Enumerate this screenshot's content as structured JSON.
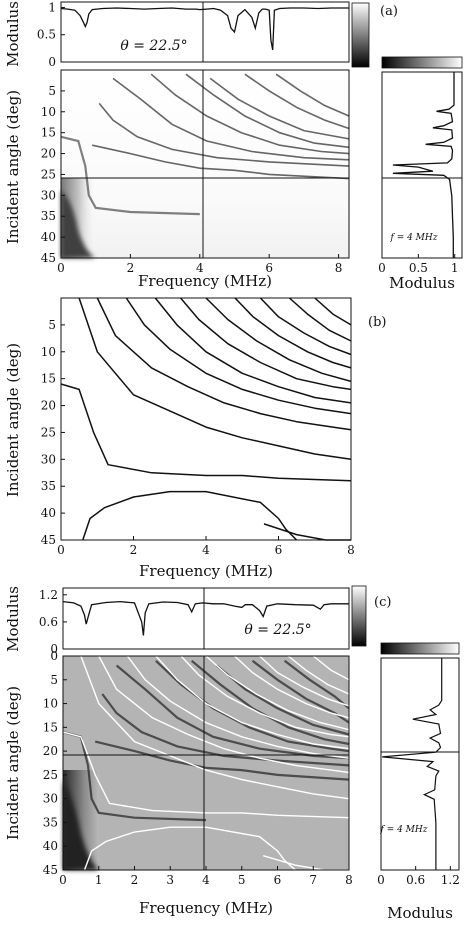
{
  "chart_data": [
    {
      "panel": "(a)",
      "type": "line",
      "subplot": "modulus-vs-frequency",
      "ylabel": "Modulus",
      "xlim": [
        0,
        8.3
      ],
      "ylim": [
        0,
        1.1
      ],
      "yticks": [
        "0",
        "0.5",
        "1"
      ],
      "annotation": "θ = 22.5°",
      "series": [
        {
          "x": [
            0,
            0.2,
            0.4,
            0.55,
            0.65,
            0.7,
            0.75,
            0.8,
            0.9,
            1.2,
            1.6,
            2.0,
            2.4,
            2.8,
            3.2,
            3.6,
            3.9,
            4.0,
            4.2,
            4.4,
            4.6,
            4.8,
            4.9,
            5.0,
            5.1,
            5.3,
            5.5,
            5.6,
            5.7,
            5.8,
            5.9,
            6.0,
            6.05,
            6.1,
            6.15,
            6.3,
            6.6,
            7.0,
            7.4,
            7.8,
            8.3
          ],
          "y": [
            0.98,
            0.97,
            0.95,
            0.85,
            0.72,
            0.65,
            0.72,
            0.88,
            0.96,
            0.98,
            0.99,
            0.98,
            0.97,
            0.98,
            0.99,
            0.97,
            0.97,
            0.96,
            0.97,
            0.98,
            0.95,
            0.85,
            0.62,
            0.55,
            0.85,
            0.96,
            0.82,
            0.62,
            0.9,
            0.97,
            0.97,
            0.95,
            0.4,
            0.22,
            0.95,
            0.98,
            0.99,
            0.99,
            0.98,
            0.99,
            0.99
          ]
        }
      ],
      "colorbar": "grayscale"
    },
    {
      "panel": "(a)",
      "type": "heatmap",
      "subplot": "angle-frequency-map",
      "xlabel": "Frequency (MHz)",
      "ylabel": "Incident angle (deg)",
      "xlim": [
        0,
        8.3
      ],
      "ylim": [
        0,
        45
      ],
      "xticks": [
        "0",
        "2",
        "4",
        "6",
        "8"
      ],
      "yticks": [
        "5",
        "10",
        "15",
        "20",
        "25",
        "30",
        "35",
        "40",
        "45"
      ],
      "crosshair": {
        "frequency": 4,
        "angle": 22.5
      },
      "dark_curves": [
        [
          [
            0,
            16
          ],
          [
            0.5,
            17
          ],
          [
            0.7,
            23
          ],
          [
            0.8,
            30
          ],
          [
            1.0,
            33
          ],
          [
            2.0,
            34
          ],
          [
            4.0,
            34.5
          ]
        ],
        [
          [
            0.9,
            18
          ],
          [
            2,
            20
          ],
          [
            3,
            22
          ],
          [
            4,
            23.5
          ],
          [
            5,
            24
          ],
          [
            6,
            25
          ],
          [
            8.3,
            26
          ]
        ],
        [
          [
            1.1,
            8
          ],
          [
            1.5,
            12
          ],
          [
            2.2,
            16
          ],
          [
            3.2,
            19
          ],
          [
            4.5,
            21
          ],
          [
            6,
            22
          ],
          [
            8.3,
            23
          ]
        ],
        [
          [
            1.5,
            2
          ],
          [
            2.3,
            7
          ],
          [
            3.2,
            13
          ],
          [
            4.2,
            17
          ],
          [
            5.5,
            19.5
          ],
          [
            7,
            21
          ],
          [
            8.3,
            21.5
          ]
        ],
        [
          [
            2.6,
            1
          ],
          [
            3.3,
            6
          ],
          [
            4.2,
            11
          ],
          [
            5.2,
            15
          ],
          [
            6.3,
            18
          ],
          [
            7.5,
            19.5
          ],
          [
            8.3,
            20
          ]
        ],
        [
          [
            3.6,
            1
          ],
          [
            4.4,
            6
          ],
          [
            5.3,
            11
          ],
          [
            6.3,
            15
          ],
          [
            7.3,
            17.5
          ],
          [
            8.3,
            18.5
          ]
        ],
        [
          [
            4.3,
            2
          ],
          [
            5.1,
            7
          ],
          [
            6.0,
            11
          ],
          [
            7.0,
            14.5
          ],
          [
            8.3,
            16.5
          ]
        ],
        [
          [
            5.3,
            1
          ],
          [
            6.0,
            5
          ],
          [
            6.8,
            9
          ],
          [
            7.6,
            12
          ],
          [
            8.3,
            14
          ]
        ],
        [
          [
            6.2,
            1
          ],
          [
            6.9,
            5
          ],
          [
            7.6,
            8.5
          ],
          [
            8.3,
            11
          ]
        ]
      ]
    },
    {
      "panel": "(a)",
      "type": "line",
      "subplot": "modulus-vs-angle",
      "xlabel": "Modulus",
      "xlim": [
        0,
        1.1
      ],
      "ylim": [
        0,
        45
      ],
      "xticks": [
        "0",
        "0.5",
        "1"
      ],
      "annotation": "f = 4 MHz",
      "series": [
        {
          "angle": [
            0,
            8,
            9,
            9.5,
            10,
            12,
            13,
            13.5,
            14,
            16,
            17,
            17.5,
            18,
            19,
            21,
            22,
            22.5,
            23,
            24,
            24.5,
            25,
            26,
            30,
            35,
            40,
            45
          ],
          "modulus": [
            0.99,
            0.99,
            0.92,
            0.75,
            0.95,
            0.97,
            0.85,
            0.7,
            0.96,
            0.97,
            0.85,
            0.6,
            0.95,
            0.97,
            0.96,
            0.9,
            0.15,
            0.5,
            0.7,
            0.15,
            0.85,
            0.93,
            0.96,
            0.97,
            0.98,
            0.98
          ]
        }
      ],
      "colorbar": "grayscale"
    },
    {
      "panel": "(b)",
      "type": "line",
      "subplot": "dispersion-curves",
      "xlabel": "Frequency (MHz)",
      "ylabel": "Incident angle (deg)",
      "xlim": [
        0,
        8
      ],
      "ylim": [
        0,
        45
      ],
      "xticks": [
        "0",
        "2",
        "4",
        "6",
        "8"
      ],
      "yticks": [
        "5",
        "10",
        "15",
        "20",
        "25",
        "30",
        "35",
        "40",
        "45"
      ],
      "series": [
        {
          "x": [
            0,
            0.5,
            0.9,
            1.3,
            2.5,
            4,
            5,
            6,
            8
          ],
          "y": [
            16,
            17,
            25,
            31,
            32.5,
            33,
            33,
            33.5,
            34
          ]
        },
        {
          "x": [
            0.6,
            0.8,
            1.2,
            2,
            3,
            4,
            5.5,
            6,
            6.2,
            6.5
          ],
          "y": [
            45,
            41,
            39,
            37,
            36,
            36,
            38,
            41,
            43,
            45
          ]
        },
        {
          "x": [
            5.6,
            6.5,
            7.3,
            8
          ],
          "y": [
            42,
            44,
            45,
            45
          ]
        },
        {
          "x": [
            0.5,
            1.0,
            2,
            3,
            4,
            5,
            6,
            7,
            8
          ],
          "y": [
            0,
            10,
            18,
            21,
            24,
            26,
            27.5,
            29,
            30
          ]
        },
        {
          "x": [
            1.0,
            1.5,
            2.5,
            3.5,
            4.5,
            5.5,
            6.5,
            7.5,
            8
          ],
          "y": [
            0,
            7,
            13,
            16.5,
            19.5,
            21.5,
            23,
            24,
            24.5
          ]
        },
        {
          "x": [
            1.8,
            2.3,
            3,
            4,
            5,
            6,
            7,
            8
          ],
          "y": [
            0,
            5,
            9.5,
            14,
            17,
            19,
            20.5,
            21.5
          ]
        },
        {
          "x": [
            2.6,
            3.2,
            4,
            5,
            6,
            7,
            8
          ],
          "y": [
            0,
            5,
            10,
            14,
            16.5,
            18.5,
            19.5
          ]
        },
        {
          "x": [
            3.3,
            3.8,
            4.6,
            5.5,
            6.5,
            7.5,
            8
          ],
          "y": [
            0,
            4,
            8.5,
            12,
            15,
            16.5,
            17
          ]
        },
        {
          "x": [
            4.0,
            4.6,
            5.4,
            6.3,
            7.2,
            8
          ],
          "y": [
            0,
            4,
            8,
            11.5,
            14,
            15.5
          ]
        },
        {
          "x": [
            4.8,
            5.3,
            6.0,
            6.8,
            7.5,
            8
          ],
          "y": [
            0,
            3.5,
            7,
            10,
            12,
            13
          ]
        },
        {
          "x": [
            5.5,
            6.0,
            6.7,
            7.4,
            8
          ],
          "y": [
            0,
            3.5,
            6.5,
            9,
            10.5
          ]
        },
        {
          "x": [
            6.3,
            6.8,
            7.4,
            8
          ],
          "y": [
            0,
            3,
            6,
            8
          ]
        },
        {
          "x": [
            7.0,
            7.5,
            8
          ],
          "y": [
            0,
            3,
            5
          ]
        }
      ]
    },
    {
      "panel": "(c)",
      "type": "line",
      "subplot": "modulus-vs-frequency",
      "ylabel": "Modulus",
      "xlim": [
        0,
        8
      ],
      "ylim": [
        0,
        1.35
      ],
      "yticks": [
        "0",
        "0.6",
        "1.2"
      ],
      "annotation": "θ = 22.5°",
      "series": [
        {
          "x": [
            0,
            0.3,
            0.5,
            0.6,
            0.65,
            0.7,
            0.8,
            1.2,
            1.6,
            2.0,
            2.2,
            2.25,
            2.3,
            2.4,
            2.8,
            3.2,
            3.5,
            3.6,
            3.7,
            3.9,
            4.2,
            4.5,
            4.8,
            5.0,
            5.1,
            5.3,
            5.5,
            5.6,
            5.7,
            6.0,
            6.5,
            7.0,
            7.2,
            7.3,
            7.5,
            8.0
          ],
          "y": [
            1.05,
            1.02,
            0.95,
            0.75,
            0.55,
            0.7,
            0.98,
            1.03,
            1.05,
            1.02,
            0.6,
            0.3,
            0.8,
            1.0,
            1.04,
            1.03,
            0.98,
            0.82,
            1.0,
            1.02,
            1.0,
            1.0,
            0.95,
            0.92,
            0.98,
            0.98,
            0.85,
            0.72,
            0.95,
            1.0,
            0.98,
            0.97,
            0.88,
            0.98,
            1.0,
            1.0
          ]
        }
      ],
      "colorbar": "grayscale"
    },
    {
      "panel": "(c)",
      "type": "heatmap",
      "subplot": "angle-frequency-map",
      "xlabel": "Frequency (MHz)",
      "ylabel": "Incident angle (deg)",
      "xlim": [
        0,
        8
      ],
      "ylim": [
        0,
        45
      ],
      "xticks": [
        "0",
        "1",
        "2",
        "3",
        "4",
        "5",
        "6",
        "7",
        "8"
      ],
      "yticks": [
        "0",
        "5",
        "10",
        "15",
        "20",
        "25",
        "30",
        "35",
        "40",
        "45"
      ],
      "crosshair": {
        "frequency": 3.9,
        "angle": 21
      },
      "overlay": "white dispersion curves from panel (b)"
    },
    {
      "panel": "(c)",
      "type": "line",
      "subplot": "modulus-vs-angle",
      "xlabel": "Modulus",
      "xlim": [
        0,
        1.35
      ],
      "ylim": [
        0,
        45
      ],
      "xticks": [
        "0",
        "0.6",
        "1.2"
      ],
      "annotation": "f = 4 MHz",
      "series": [
        {
          "angle": [
            0,
            9,
            10,
            11,
            12,
            13,
            14,
            16,
            17,
            18,
            19,
            20,
            21,
            22,
            23,
            24,
            25,
            28,
            29,
            30,
            35,
            40,
            45
          ],
          "modulus": [
            1.05,
            1.05,
            1.0,
            0.85,
            0.95,
            0.55,
            1.0,
            1.03,
            0.85,
            1.0,
            1.03,
            0.95,
            0.02,
            0.9,
            0.8,
            1.0,
            0.95,
            0.93,
            0.75,
            0.92,
            0.95,
            0.95,
            0.95
          ]
        }
      ],
      "colorbar": "grayscale"
    }
  ]
}
